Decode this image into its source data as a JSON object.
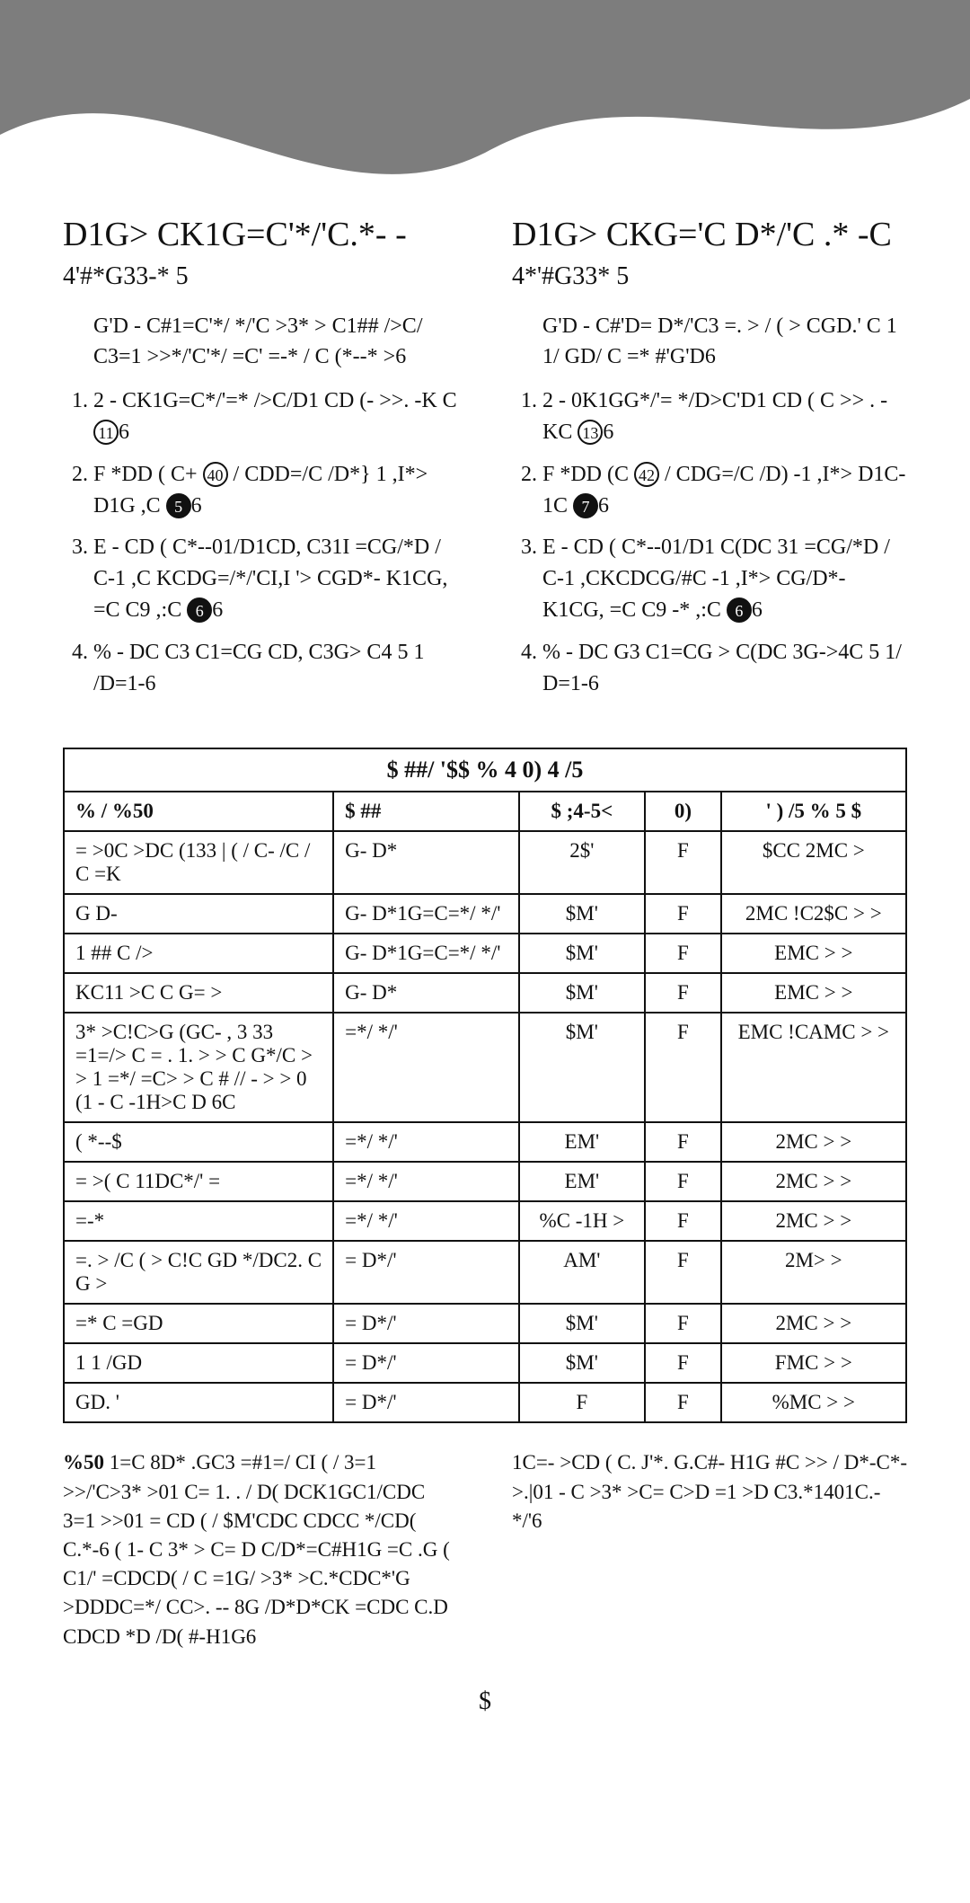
{
  "colors": {
    "band": "#7d7d7d",
    "text": "#111111",
    "border": "#111111",
    "background": "#ffffff"
  },
  "left": {
    "title": "D1G> CK1G=C'*/'C.*- -",
    "subhead": "4'#*G33-* 5",
    "intro": "G'D - C#1=C'*/ */'C >3* > C1## />C/ C3=1 >>*/'C'*/ =C' =-* / C (*--* >6",
    "steps": {
      "s1": {
        "pre": "2 - CK1G=C*/'=* />C/D1 CD (- >>. -K C",
        "num": "11",
        "post": "6"
      },
      "s2": {
        "pre": "F *DD ( C+ ",
        "num1": "40",
        "mid": " / CDD=/C /D*} 1 ,I*> D1G ,C ",
        "num2": "5",
        "post": "6"
      },
      "s3": {
        "pre": "E - CD ( C*--01/D1CD, C31I =CG/*D / C-1 ,C KCDG=/*/'CI,I '> CGD*- K1CG, =C C9 ,:C ",
        "num": "6",
        "post": "6"
      },
      "s4": "% - DC C3 C1=CG CD, C3G> C4 5 1 /D=1-6"
    }
  },
  "right": {
    "title": "D1G> CKG='C D*/'C .* -C",
    "subhead": "4*'#G33* 5",
    "intro": "G'D - C#'D= D*/'C3 =. > / ( > CGD.' C 1 1/ GD/ C =* #'G'D6",
    "steps": {
      "s1": {
        "pre": "2 - 0K1GG*/'= */D>C'D1 CD ( C >> . -KC ",
        "num": "13",
        "post": "6"
      },
      "s2": {
        "pre": "F *DD (C ",
        "num1": "42",
        "mid": " / CDG=/C /D) -1 ,I*> D1C-1C ",
        "num2": "7",
        "post": "6"
      },
      "s3": {
        "pre": "E - CD ( C*--01/D1 C(DC 31 =CG/*D / C-1 ,CKCDCG/#C -1 ,I*> CG/D*- K1CG, =C C9 -* ,:C ",
        "num": "6",
        "post": "6"
      },
      "s4": "% - DC G3 C1=CG > C(DC 3G->4C 5 1/ D=1-6"
    }
  },
  "table": {
    "title": "$ ##/ '$$ %  4    0)  4   /5",
    "headers": [
      "% /   %50",
      "$ ##",
      "$ ;4-5<",
      "0)",
      "' ) /5 % 5 $"
    ],
    "col_widths": [
      "32%",
      "22%",
      "15%",
      "9%",
      "22%"
    ],
    "rows": [
      [
        "= >0C >DC (133 | ( / C- /C / C =K",
        "G- D*",
        "2$'",
        "F",
        "$CC 2MC >"
      ],
      [
        "G D-",
        "G- D*1G=C=*/ */'",
        "$M'",
        "F",
        "2MC !C2$C > >"
      ],
      [
        "1 ## C />",
        "G- D*1G=C=*/ */'",
        "$M'",
        "F",
        "EMC > >"
      ],
      [
        "KC11 >C C G= >",
        "G- D*",
        "$M'",
        "F",
        "EMC > >"
      ],
      [
        "3* >C!C>G (GC- , 3 33 =1=/> C = . 1. > > C G*/C > > 1 =*/ =C> > C # // - > > 0 (1 - C -1H>C D 6C",
        "=*/ */'",
        "$M'",
        "F",
        "EMC !CAMC > >"
      ],
      [
        "( *--$",
        "=*/ */'",
        "EM'",
        "F",
        "2MC > >"
      ],
      [
        "= >( C 11DC*/' =",
        "=*/ */'",
        "EM'",
        "F",
        "2MC > >"
      ],
      [
        "=-*",
        "=*/ */'",
        "%C -1H >",
        "F",
        "2MC > >"
      ],
      [
        "=. > /C ( > C!C GD */DC2. C G >",
        "= D*/'",
        "AM'",
        "F",
        "2M> >"
      ],
      [
        "=* C =GD",
        "= D*/'",
        "$M'",
        "F",
        "2MC > >"
      ],
      [
        "1 1 /GD",
        "= D*/'",
        "$M'",
        "F",
        "FMC > >"
      ],
      [
        "GD. '",
        "= D*/'",
        "F",
        "F",
        "%MC > >"
      ]
    ]
  },
  "notes": {
    "left_label": "%50",
    "left_body": "1=C 8D* .GC3 =#1=/    CI ( / 3=1 >>/'C>3* >01 C= 1. . / D( DCK1GC1/CDC 3=1 >>01 = CD ( / $M'CDC CDCC */CD( C.*-6 ( 1- C 3* > C= D C/D*=C#H1G =C .G ( C1/' =CDCD( / C =1G/ >3* >C.*CDC*'G >DDDC=*/ CC>. -- 8G /D*D*CK =CDC C.D CDCD *D /D( #-H1G6",
    "right_body": "1C=-  >CD ( C. J'*. G.C#- H1G #C >> / D*-C*->.|01 - C >3* >C= C>D =1 >D C3.*1401C.-*/'6"
  },
  "page_number": "$"
}
